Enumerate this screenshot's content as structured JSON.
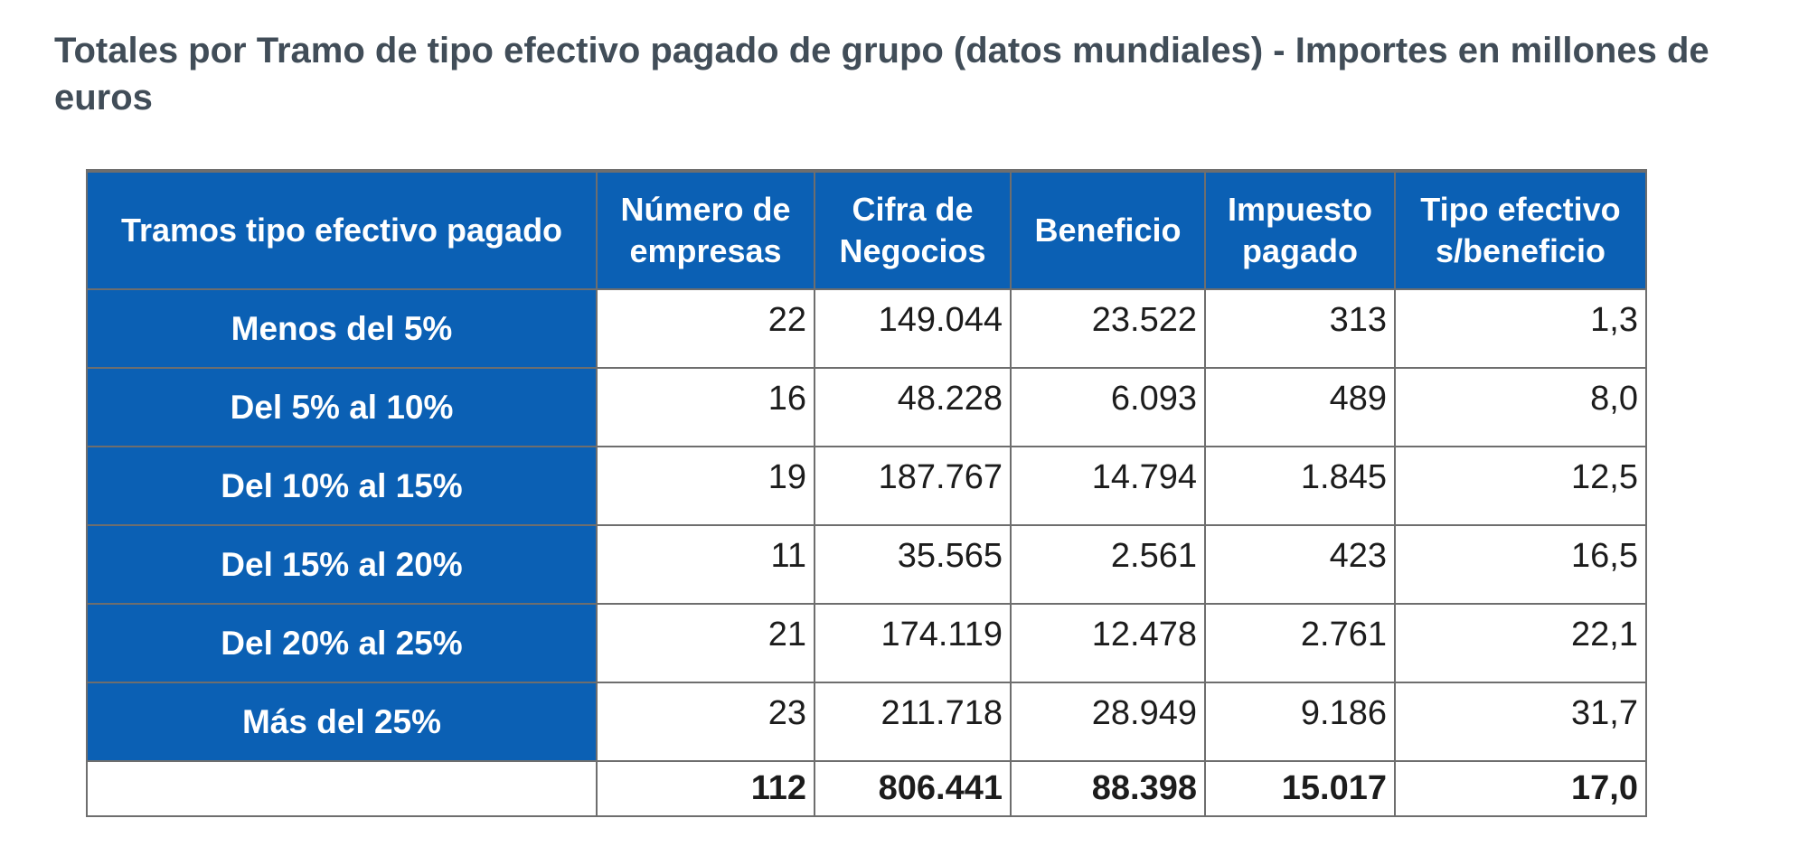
{
  "title": "Totales por Tramo de tipo efectivo pagado de grupo (datos mundiales) - Importes en millones de euros",
  "chart_data": {
    "type": "table",
    "columns": [
      "Tramos tipo efectivo pagado",
      "Número de empresas",
      "Cifra de Negocios",
      "Beneficio",
      "Impuesto pagado",
      "Tipo efectivo s/beneficio"
    ],
    "rows": [
      {
        "label": "Menos del 5%",
        "values": [
          "22",
          "149.044",
          "23.522",
          "313",
          "1,3"
        ]
      },
      {
        "label": "Del 5% al 10%",
        "values": [
          "16",
          "48.228",
          "6.093",
          "489",
          "8,0"
        ]
      },
      {
        "label": "Del 10% al 15%",
        "values": [
          "19",
          "187.767",
          "14.794",
          "1.845",
          "12,5"
        ]
      },
      {
        "label": "Del 15% al 20%",
        "values": [
          "11",
          "35.565",
          "2.561",
          "423",
          "16,5"
        ]
      },
      {
        "label": "Del 20% al 25%",
        "values": [
          "21",
          "174.119",
          "12.478",
          "2.761",
          "22,1"
        ]
      },
      {
        "label": "Más del 25%",
        "values": [
          "23",
          "211.718",
          "28.949",
          "9.186",
          "31,7"
        ]
      }
    ],
    "totals": {
      "label": "",
      "values": [
        "112",
        "806.441",
        "88.398",
        "15.017",
        "17,0"
      ]
    }
  },
  "colors": {
    "header_blue": "#0b60b4",
    "border_grey": "#6e6e6e",
    "title_color": "#414d58",
    "number_text": "#1c1c1c"
  }
}
